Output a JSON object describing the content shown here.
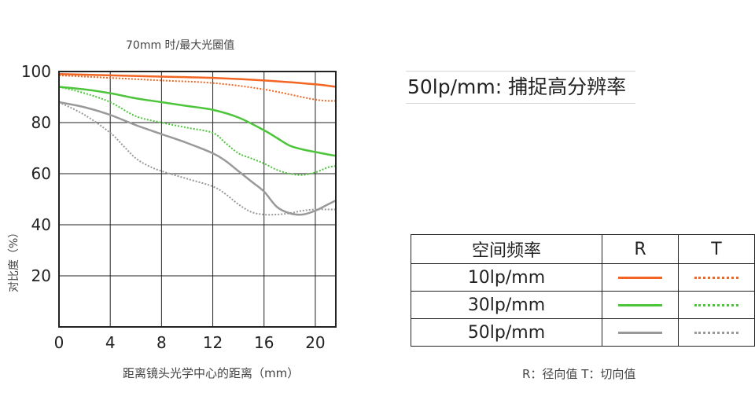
{
  "chart_data": {
    "type": "line",
    "title": "70mm 时/最大光圈值",
    "xlabel": "距离镜头光学中心的距离（mm）",
    "ylabel": "对比度（%）",
    "xlim": [
      0,
      21.6
    ],
    "ylim": [
      0,
      100
    ],
    "xticks": [
      "0",
      "4",
      "8",
      "12",
      "16",
      "20"
    ],
    "yticks": [
      "20",
      "40",
      "60",
      "80",
      "100"
    ],
    "grid": true,
    "series": [
      {
        "name": "10lp/mm R",
        "color": "#f26522",
        "style": "solid",
        "x": [
          0,
          4,
          8,
          12,
          16,
          20,
          21.6
        ],
        "y": [
          99,
          98.5,
          98,
          97.5,
          96.5,
          95,
          94
        ]
      },
      {
        "name": "10lp/mm T",
        "color": "#f26522",
        "style": "dotted",
        "x": [
          0,
          4,
          8,
          12,
          16,
          20,
          21.6
        ],
        "y": [
          98.5,
          97.5,
          96.5,
          95.5,
          93,
          89,
          88.5
        ]
      },
      {
        "name": "30lp/mm R",
        "color": "#4cc53a",
        "style": "solid",
        "x": [
          0,
          2,
          4,
          6,
          8,
          10,
          12,
          14,
          16,
          17,
          18,
          19,
          20,
          21,
          21.6
        ],
        "y": [
          94,
          93,
          91.5,
          89.5,
          88,
          86.5,
          85,
          82,
          77,
          74,
          71,
          69.5,
          68.5,
          67.5,
          67
        ]
      },
      {
        "name": "30lp/mm T",
        "color": "#4cc53a",
        "style": "dotted",
        "x": [
          0,
          2,
          4,
          6,
          8,
          10,
          12,
          13,
          14,
          15,
          16,
          17,
          18,
          19,
          20,
          21,
          21.6
        ],
        "y": [
          94,
          91.5,
          88,
          82.5,
          80,
          78,
          76,
          72,
          68,
          66,
          64,
          61.5,
          60,
          59.5,
          60.5,
          62.5,
          63
        ]
      },
      {
        "name": "50lp/mm R",
        "color": "#999999",
        "style": "solid",
        "x": [
          0,
          2,
          4,
          6,
          8,
          10,
          12,
          13,
          14,
          15,
          16,
          17,
          18,
          19,
          20,
          21,
          21.6
        ],
        "y": [
          88,
          86,
          83,
          79,
          75.5,
          72,
          68,
          65,
          61,
          57,
          53,
          47,
          44.5,
          44,
          45.5,
          48,
          49.5
        ]
      },
      {
        "name": "50lp/mm T",
        "color": "#999999",
        "style": "dotted",
        "x": [
          0,
          2,
          4,
          5,
          6,
          7,
          8,
          10,
          12,
          13,
          14,
          15,
          16,
          17,
          18,
          19,
          20,
          21,
          21.6
        ],
        "y": [
          88,
          83,
          76,
          71,
          66,
          63,
          61,
          58,
          55,
          52,
          48,
          45,
          44,
          44,
          44.5,
          45.5,
          46,
          46,
          46
        ]
      }
    ]
  },
  "heading": "50lp/mm: 捕捉高分辨率",
  "legend": {
    "header": {
      "col1": "空间频率",
      "col2": "R",
      "col3": "T"
    },
    "rows": [
      {
        "label": "10lp/mm",
        "color": "#f26522"
      },
      {
        "label": "30lp/mm",
        "color": "#4cc53a"
      },
      {
        "label": "50lp/mm",
        "color": "#999999"
      }
    ]
  },
  "footnote": "R：径向值   T：切向值"
}
